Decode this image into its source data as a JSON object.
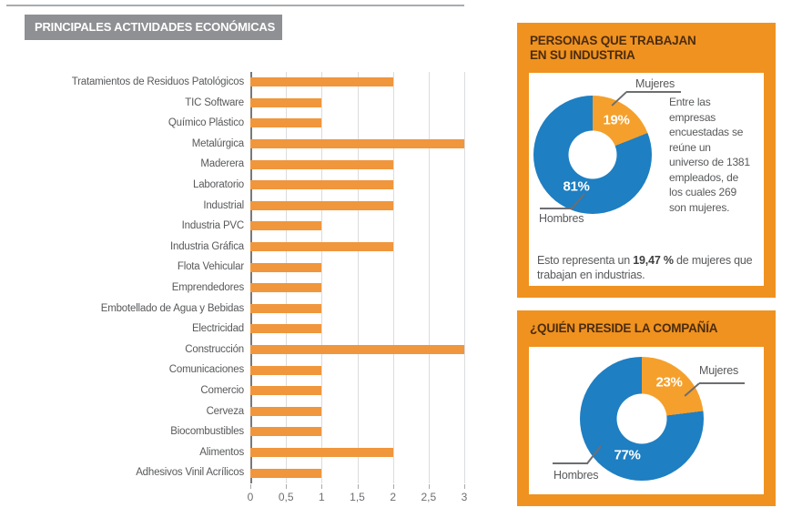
{
  "colors": {
    "panel_orange": "#f0921f",
    "bar_orange": "#f0963c",
    "donut_orange": "#f5a02c",
    "donut_blue": "#1e7fc2",
    "header_gray": "#8e9093",
    "title_brown": "#4a2c10",
    "text_gray": "#58595b"
  },
  "chart_data": [
    {
      "type": "bar",
      "orientation": "horizontal",
      "title": "PRINCIPALES ACTIVIDADES ECONÓMICAS",
      "categories": [
        "Tratamientos de Residuos Patológicos",
        "TIC Software",
        "Químico Plástico",
        "Metalúrgica",
        "Maderera",
        "Laboratorio",
        "Industrial",
        "Industria PVC",
        "Industria Gráfica",
        "Flota Vehicular",
        "Emprendedores",
        "Embotellado de Agua y Bebidas",
        "Electricidad",
        "Construcción",
        "Comunicaciones",
        "Comercio",
        "Cerveza",
        "Biocombustibles",
        "Alimentos",
        "Adhesivos Vinil Acrílicos"
      ],
      "values": [
        2,
        1,
        1,
        3,
        2,
        2,
        2,
        1,
        2,
        1,
        1,
        1,
        1,
        3,
        1,
        1,
        1,
        1,
        2,
        1
      ],
      "xlim": [
        0,
        3
      ],
      "x_tick_labels": [
        "0",
        "0,5",
        "1",
        "1,5",
        "2",
        "2,5",
        "3"
      ],
      "grid": true,
      "bar_color": "#f0963c",
      "xlabel": "",
      "ylabel": ""
    },
    {
      "type": "pie",
      "subtype": "donut",
      "title": "PERSONAS QUE TRABAJAN EN SU INDUSTRIA",
      "labels": [
        "Mujeres",
        "Hombres"
      ],
      "values": [
        19,
        81
      ],
      "value_labels": [
        "19%",
        "81%"
      ],
      "colors": [
        "#f5a02c",
        "#1e7fc2"
      ],
      "annotation": "Entre las empresas encuestadas se reúne un universo de 1381 empleados, de los cuales 269 son mujeres.",
      "footer": "Esto representa un 19,47 % de mujeres que trabajan en industrias."
    },
    {
      "type": "pie",
      "subtype": "donut",
      "title": "¿QUIÉN PRESIDE LA COMPAÑÍA",
      "labels": [
        "Mujeres",
        "Hombres"
      ],
      "values": [
        23,
        77
      ],
      "value_labels": [
        "23%",
        "77%"
      ],
      "colors": [
        "#f5a02c",
        "#1e7fc2"
      ]
    }
  ],
  "panel_industria": {
    "title_display": "PERSONAS QUE TRABAJAN\nEN SU INDUSTRIA",
    "side_text": "Entre las\nempresas\nencuestadas se\nreúne un\nuniverso de 1381\nempleados, de\nlos cuales 269\nson mujeres.",
    "footer": {
      "prefix": "Esto representa un ",
      "bold": "19,47 %",
      "suffix": " de mujeres que trabajan en industrias."
    }
  },
  "panel_preside": {
    "title_display": "¿QUIÉN PRESIDE LA COMPAÑÍA"
  }
}
